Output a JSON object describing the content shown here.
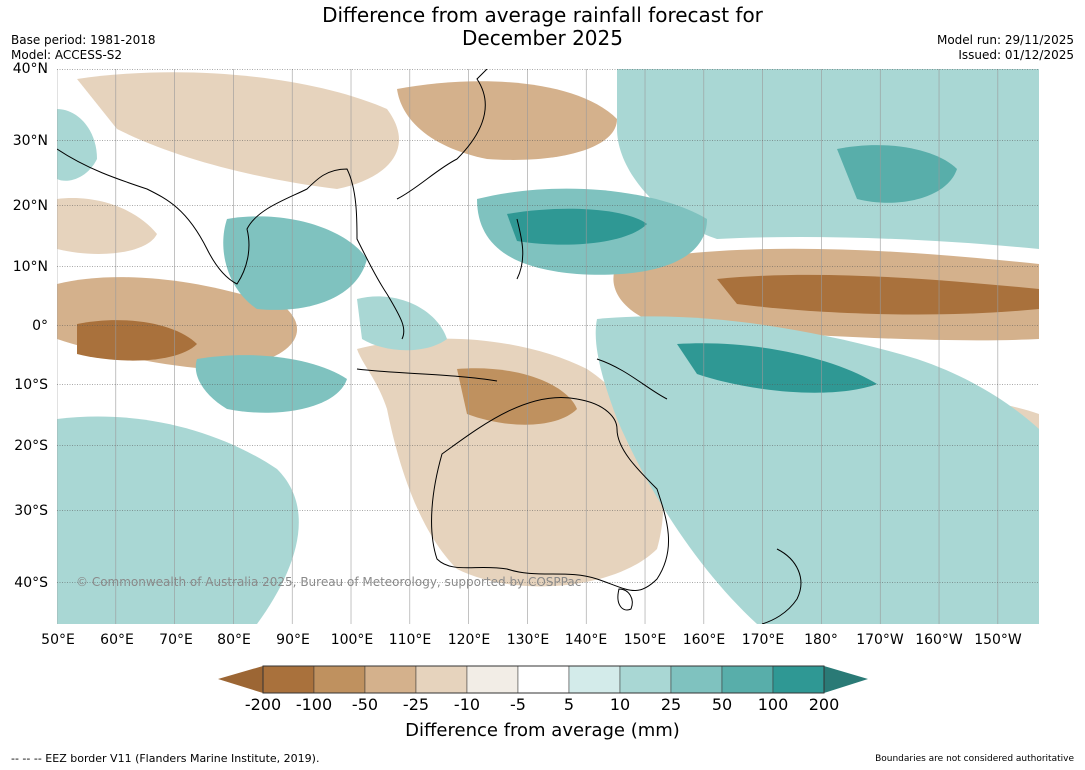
{
  "title": {
    "line1": "Difference from average rainfall forecast for",
    "line2": "December 2025"
  },
  "meta": {
    "base_period": "Base period: 1981-2018",
    "model": "Model: ACCESS-S2",
    "model_run": "Model run: 29/11/2025",
    "issued": "Issued: 01/12/2025"
  },
  "map": {
    "lat_labels": [
      "40°N",
      "30°N",
      "20°N",
      "10°N",
      "0°",
      "10°S",
      "20°S",
      "30°S",
      "40°S"
    ],
    "lon_labels": [
      "50°E",
      "60°E",
      "70°E",
      "80°E",
      "90°E",
      "100°E",
      "110°E",
      "120°E",
      "130°E",
      "140°E",
      "150°E",
      "160°E",
      "170°E",
      "180°",
      "170°W",
      "160°W",
      "150°W"
    ],
    "lon_range": [
      50,
      217
    ],
    "lat_range": [
      -45,
      40
    ],
    "copyright": "© Commonwealth of Australia 2025, Bureau of Meteorology, supported by COSPPac"
  },
  "colorbar": {
    "ticks": [
      "-200",
      "-100",
      "-50",
      "-25",
      "-10",
      "-5",
      "5",
      "10",
      "25",
      "50",
      "100",
      "200"
    ],
    "colors": {
      "below_min": "#9c6634",
      "c1": "#a9713c",
      "c2": "#bf915f",
      "c3": "#d4b18c",
      "c4": "#e6d3bd",
      "c5": "#f2ede6",
      "c6": "#ffffff",
      "c7": "#d3ebea",
      "c8": "#a9d7d4",
      "c9": "#7fc2bf",
      "c10": "#58aeaa",
      "c11": "#2f9894",
      "above_max": "#2a7a76"
    },
    "label": "Difference from average (mm)"
  },
  "footer": {
    "eez": "--  --  -- EEZ border V11 (Flanders Marine Institute, 2019).",
    "boundaries": "Boundaries are not considered authoritative"
  }
}
